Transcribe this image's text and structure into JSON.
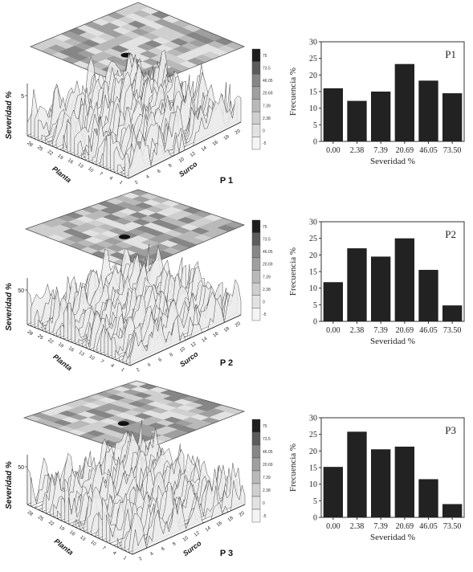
{
  "panels": [
    {
      "id": "p1",
      "label": "P 1",
      "zaxis_label": "Severidad %",
      "zaxis_tick": "5",
      "planta_label": "Planta",
      "surco_label": "Surco",
      "planta_ticks": [
        "1",
        "4",
        "7",
        "10",
        "13",
        "16",
        "19",
        "22",
        "25",
        "28"
      ],
      "surco_ticks": [
        "2",
        "4",
        "6",
        "8",
        "10",
        "12",
        "14",
        "16",
        "18",
        "20"
      ],
      "legend_ticks": [
        "75",
        "73.5",
        "46.05",
        "20.69",
        "7.39",
        "2.38",
        "0",
        "-5"
      ]
    },
    {
      "id": "p2",
      "label": "P 2",
      "zaxis_label": "Severidad %",
      "zaxis_tick": "50",
      "planta_label": "Planta",
      "surco_label": "Surco",
      "planta_ticks": [
        "1",
        "4",
        "7",
        "10",
        "13",
        "16",
        "19",
        "22",
        "25",
        "28"
      ],
      "surco_ticks": [
        "2",
        "4",
        "6",
        "8",
        "10",
        "12",
        "14",
        "16",
        "18",
        "20"
      ],
      "legend_ticks": [
        "75",
        "73.5",
        "46.05",
        "20.69",
        "7.39",
        "2.38",
        "0",
        "-5"
      ]
    },
    {
      "id": "p3",
      "label": "P 3",
      "zaxis_label": "Severidad %",
      "zaxis_tick": "50",
      "planta_label": "Planta",
      "surco_label": "Surco",
      "planta_ticks": [
        "1",
        "4",
        "7",
        "10",
        "13",
        "16",
        "19",
        "22",
        "25",
        "28"
      ],
      "surco_ticks": [
        "2",
        "4",
        "6",
        "8",
        "10",
        "12",
        "14",
        "16",
        "18",
        "20"
      ],
      "legend_ticks": [
        "75",
        "73.5",
        "46.05",
        "20.69",
        "7.39",
        "2.38",
        "0",
        "-5"
      ]
    }
  ],
  "chart_data": [
    {
      "type": "bar",
      "title": "P1",
      "categories": [
        "0.00",
        "2.38",
        "7.39",
        "20.69",
        "46.05",
        "73.50"
      ],
      "values": [
        16,
        12.2,
        15,
        23.3,
        18.3,
        14.5
      ],
      "xlabel": "Severidad %",
      "ylabel": "Frecuencia %",
      "ylim": [
        0,
        30
      ],
      "yticks": [
        "0",
        "5",
        "10",
        "15",
        "20",
        "25",
        "30"
      ],
      "bar_color": "#222222"
    },
    {
      "type": "bar",
      "title": "P2",
      "categories": [
        "0.00",
        "2.38",
        "7.39",
        "20.69",
        "46.05",
        "73.50"
      ],
      "values": [
        11.8,
        22,
        19.5,
        25,
        15.5,
        4.8
      ],
      "xlabel": "Severidad %",
      "ylabel": "Frecuencia %",
      "ylim": [
        0,
        30
      ],
      "yticks": [
        "0",
        "5",
        "10",
        "15",
        "20",
        "25",
        "30"
      ],
      "bar_color": "#222222"
    },
    {
      "type": "bar",
      "title": "P3",
      "categories": [
        "0.00",
        "2.38",
        "7.39",
        "20.69",
        "46.05",
        "73.50"
      ],
      "values": [
        15.2,
        25.8,
        20.5,
        21.3,
        11.5,
        4
      ],
      "xlabel": "Severidad %",
      "ylabel": "Frecuencia %",
      "ylim": [
        0,
        30
      ],
      "yticks": [
        "0",
        "5",
        "10",
        "15",
        "20",
        "25",
        "30"
      ],
      "bar_color": "#222222"
    }
  ]
}
